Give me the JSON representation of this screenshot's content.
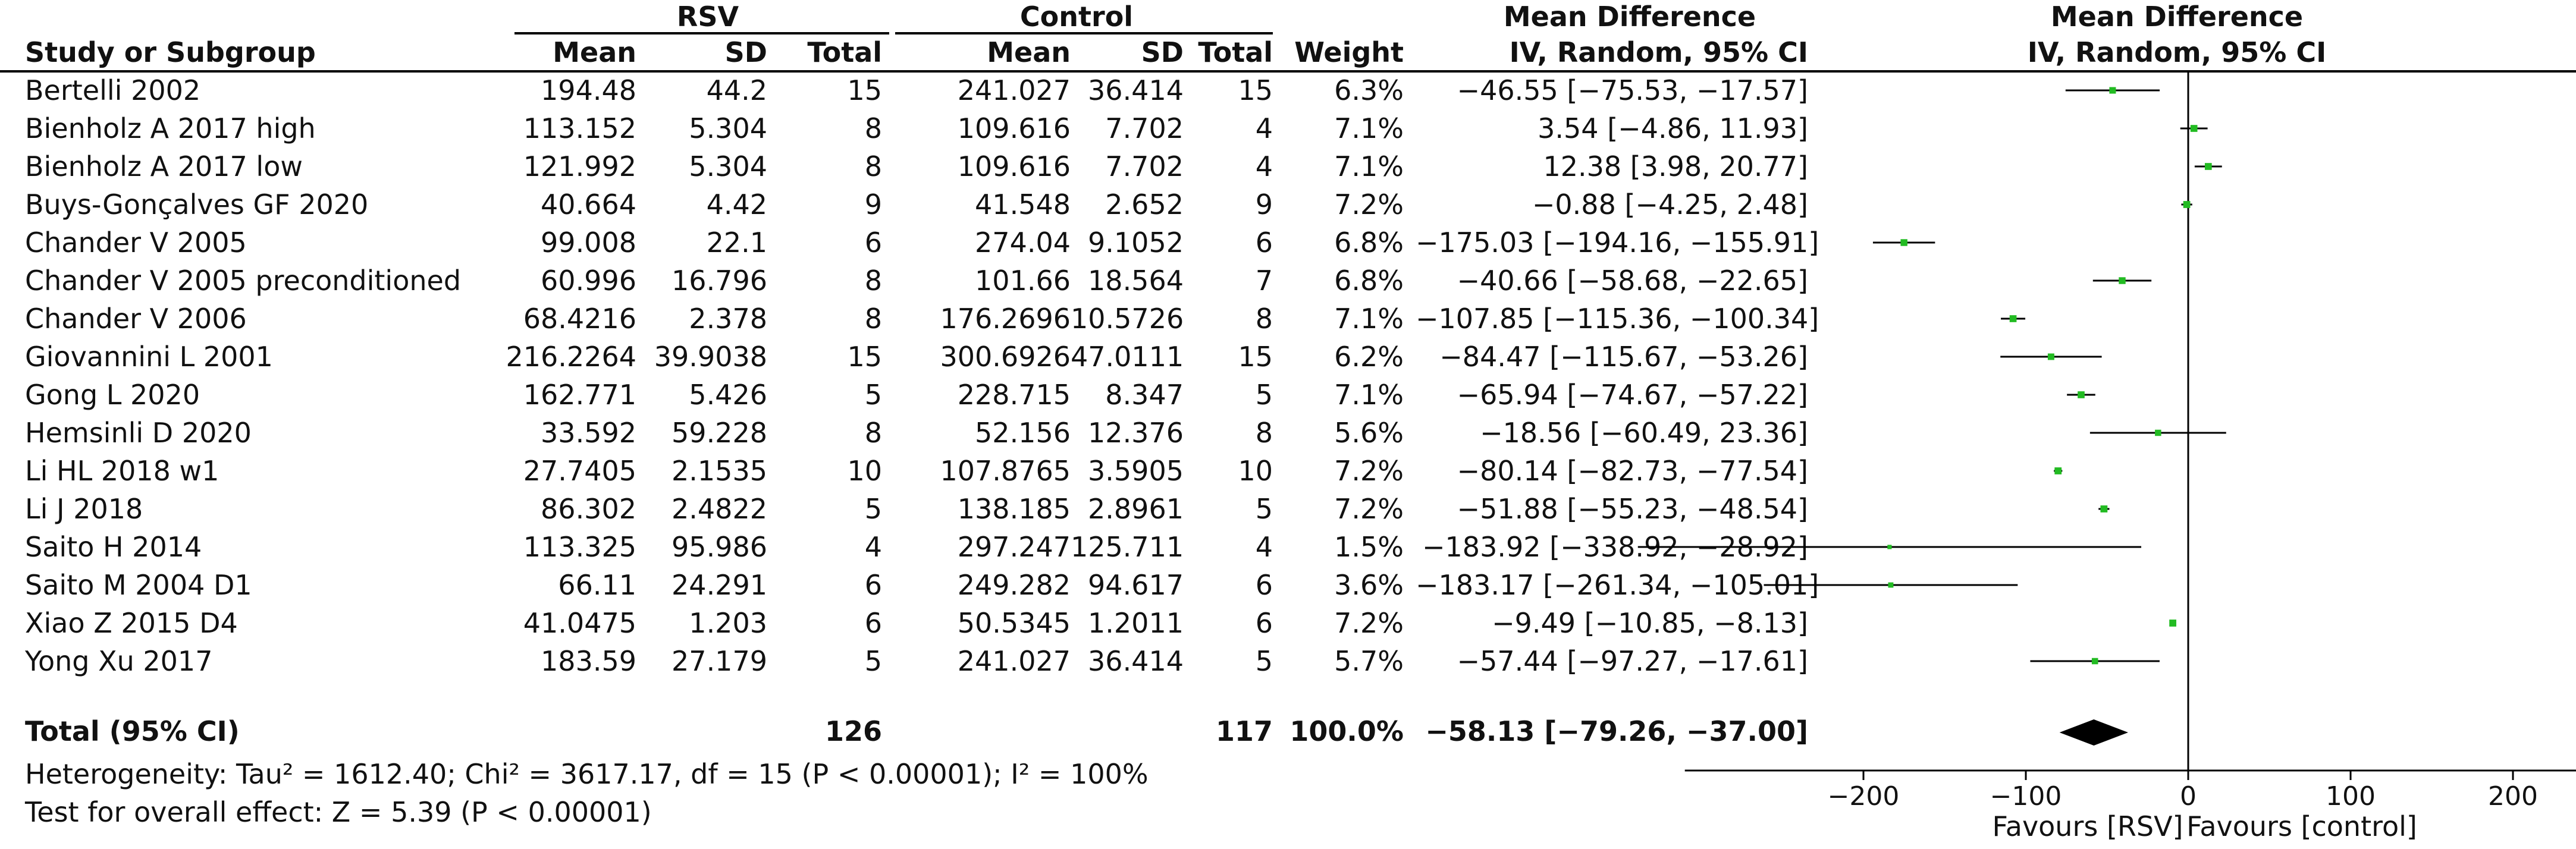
{
  "header": {
    "group1_label": "RSV",
    "group2_label": "Control",
    "md_title": "Mean Difference",
    "plot_title": "Mean Difference",
    "col_study": "Study or Subgroup",
    "col_mean1": "Mean",
    "col_sd1": "SD",
    "col_total1": "Total",
    "col_mean2": "Mean",
    "col_sd2": "SD",
    "col_total2": "Total",
    "col_weight": "Weight",
    "col_ci": "IV, Random, 95% CI",
    "plot_subtitle": "IV, Random, 95% CI"
  },
  "rows": [
    {
      "study": "Bertelli 2002",
      "mean1": "194.48",
      "sd1": "44.2",
      "n1": "15",
      "mean2": "241.027",
      "sd2": "36.414",
      "n2": "15",
      "weight": "6.3%",
      "ci": "−46.55 [−75.53, −17.57]"
    },
    {
      "study": "Bienholz A 2017 high",
      "mean1": "113.152",
      "sd1": "5.304",
      "n1": "8",
      "mean2": "109.616",
      "sd2": "7.702",
      "n2": "4",
      "weight": "7.1%",
      "ci": "3.54 [−4.86, 11.93]"
    },
    {
      "study": "Bienholz A 2017 low",
      "mean1": "121.992",
      "sd1": "5.304",
      "n1": "8",
      "mean2": "109.616",
      "sd2": "7.702",
      "n2": "4",
      "weight": "7.1%",
      "ci": "12.38 [3.98, 20.77]"
    },
    {
      "study": "Buys-Gonçalves GF 2020",
      "mean1": "40.664",
      "sd1": "4.42",
      "n1": "9",
      "mean2": "41.548",
      "sd2": "2.652",
      "n2": "9",
      "weight": "7.2%",
      "ci": "−0.88 [−4.25, 2.48]"
    },
    {
      "study": "Chander V 2005",
      "mean1": "99.008",
      "sd1": "22.1",
      "n1": "6",
      "mean2": "274.04",
      "sd2": "9.1052",
      "n2": "6",
      "weight": "6.8%",
      "ci": "−175.03 [−194.16, −155.91]"
    },
    {
      "study": "Chander V 2005 preconditioned",
      "mean1": "60.996",
      "sd1": "16.796",
      "n1": "8",
      "mean2": "101.66",
      "sd2": "18.564",
      "n2": "7",
      "weight": "6.8%",
      "ci": "−40.66 [−58.68, −22.65]"
    },
    {
      "study": "Chander V 2006",
      "mean1": "68.4216",
      "sd1": "2.378",
      "n1": "8",
      "mean2": "176.2696",
      "sd2": "10.5726",
      "n2": "8",
      "weight": "7.1%",
      "ci": "−107.85 [−115.36, −100.34]"
    },
    {
      "study": "Giovannini L 2001",
      "mean1": "216.2264",
      "sd1": "39.9038",
      "n1": "15",
      "mean2": "300.6926",
      "sd2": "47.0111",
      "n2": "15",
      "weight": "6.2%",
      "ci": "−84.47 [−115.67, −53.26]"
    },
    {
      "study": "Gong L 2020",
      "mean1": "162.771",
      "sd1": "5.426",
      "n1": "5",
      "mean2": "228.715",
      "sd2": "8.347",
      "n2": "5",
      "weight": "7.1%",
      "ci": "−65.94 [−74.67, −57.22]"
    },
    {
      "study": "Hemsinli D 2020",
      "mean1": "33.592",
      "sd1": "59.228",
      "n1": "8",
      "mean2": "52.156",
      "sd2": "12.376",
      "n2": "8",
      "weight": "5.6%",
      "ci": "−18.56 [−60.49, 23.36]"
    },
    {
      "study": "Li HL 2018 w1",
      "mean1": "27.7405",
      "sd1": "2.1535",
      "n1": "10",
      "mean2": "107.8765",
      "sd2": "3.5905",
      "n2": "10",
      "weight": "7.2%",
      "ci": "−80.14 [−82.73, −77.54]"
    },
    {
      "study": "Li J 2018",
      "mean1": "86.302",
      "sd1": "2.4822",
      "n1": "5",
      "mean2": "138.185",
      "sd2": "2.8961",
      "n2": "5",
      "weight": "7.2%",
      "ci": "−51.88 [−55.23, −48.54]"
    },
    {
      "study": "Saito H 2014",
      "mean1": "113.325",
      "sd1": "95.986",
      "n1": "4",
      "mean2": "297.247",
      "sd2": "125.711",
      "n2": "4",
      "weight": "1.5%",
      "ci": "−183.92 [−338.92, −28.92]"
    },
    {
      "study": "Saito M 2004 D1",
      "mean1": "66.11",
      "sd1": "24.291",
      "n1": "6",
      "mean2": "249.282",
      "sd2": "94.617",
      "n2": "6",
      "weight": "3.6%",
      "ci": "−183.17 [−261.34, −105.01]"
    },
    {
      "study": "Xiao Z 2015 D4",
      "mean1": "41.0475",
      "sd1": "1.203",
      "n1": "6",
      "mean2": "50.5345",
      "sd2": "1.2011",
      "n2": "6",
      "weight": "7.2%",
      "ci": "−9.49 [−10.85, −8.13]"
    },
    {
      "study": "Yong Xu 2017",
      "mean1": "183.59",
      "sd1": "27.179",
      "n1": "5",
      "mean2": "241.027",
      "sd2": "36.414",
      "n2": "5",
      "weight": "5.7%",
      "ci": "−57.44 [−97.27, −17.61]"
    }
  ],
  "total": {
    "label": "Total (95% CI)",
    "n1": "126",
    "n2": "117",
    "weight": "100.0%",
    "ci": "−58.13 [−79.26, −37.00]"
  },
  "footer": {
    "heterogeneity": "Heterogeneity: Tau² = 1612.40; Chi² = 3617.17, df = 15 (P < 0.00001); I² = 100%",
    "overall": "Test for overall effect: Z = 5.39 (P < 0.00001)"
  },
  "axis": {
    "favours_left": "Favours [RSV]",
    "favours_right": "Favours [control]"
  },
  "colors": {
    "marker": "#22bb22",
    "line": "#000000",
    "diamond": "#000000"
  },
  "chart_data": {
    "type": "forest",
    "x_ticks": [
      -200,
      -100,
      0,
      100,
      200
    ],
    "x_tick_labels": [
      "−200",
      "−100",
      "0",
      "100",
      "200"
    ],
    "xlim": [
      -310,
      390
    ],
    "studies": [
      {
        "name": "Bertelli 2002",
        "md": -46.55,
        "lo": -75.53,
        "hi": -17.57,
        "weight": 6.3
      },
      {
        "name": "Bienholz A 2017 high",
        "md": 3.54,
        "lo": -4.86,
        "hi": 11.93,
        "weight": 7.1
      },
      {
        "name": "Bienholz A 2017 low",
        "md": 12.38,
        "lo": 3.98,
        "hi": 20.77,
        "weight": 7.1
      },
      {
        "name": "Buys-Gonçalves GF 2020",
        "md": -0.88,
        "lo": -4.25,
        "hi": 2.48,
        "weight": 7.2
      },
      {
        "name": "Chander V 2005",
        "md": -175.03,
        "lo": -194.16,
        "hi": -155.91,
        "weight": 6.8
      },
      {
        "name": "Chander V 2005 preconditioned",
        "md": -40.66,
        "lo": -58.68,
        "hi": -22.65,
        "weight": 6.8
      },
      {
        "name": "Chander V 2006",
        "md": -107.85,
        "lo": -115.36,
        "hi": -100.34,
        "weight": 7.1
      },
      {
        "name": "Giovannini L 2001",
        "md": -84.47,
        "lo": -115.67,
        "hi": -53.26,
        "weight": 6.2
      },
      {
        "name": "Gong L 2020",
        "md": -65.94,
        "lo": -74.67,
        "hi": -57.22,
        "weight": 7.1
      },
      {
        "name": "Hemsinli D 2020",
        "md": -18.56,
        "lo": -60.49,
        "hi": 23.36,
        "weight": 5.6
      },
      {
        "name": "Li HL 2018 w1",
        "md": -80.14,
        "lo": -82.73,
        "hi": -77.54,
        "weight": 7.2
      },
      {
        "name": "Li J 2018",
        "md": -51.88,
        "lo": -55.23,
        "hi": -48.54,
        "weight": 7.2
      },
      {
        "name": "Saito H 2014",
        "md": -183.92,
        "lo": -338.92,
        "hi": -28.92,
        "weight": 1.5
      },
      {
        "name": "Saito M 2004 D1",
        "md": -183.17,
        "lo": -261.34,
        "hi": -105.01,
        "weight": 3.6
      },
      {
        "name": "Xiao Z 2015 D4",
        "md": -9.49,
        "lo": -10.85,
        "hi": -8.13,
        "weight": 7.2
      },
      {
        "name": "Yong Xu 2017",
        "md": -57.44,
        "lo": -97.27,
        "hi": -17.61,
        "weight": 5.7
      }
    ],
    "pooled": {
      "md": -58.13,
      "lo": -79.26,
      "hi": -37.0
    }
  }
}
